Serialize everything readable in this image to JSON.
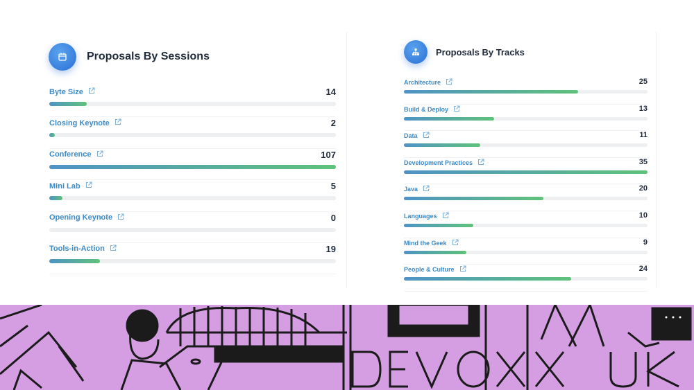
{
  "sessions": {
    "title": "Proposals By Sessions",
    "icon": "calendar-icon",
    "max": 107,
    "items": [
      {
        "label": "Byte Size",
        "count": "14",
        "value": 14
      },
      {
        "label": "Closing Keynote",
        "count": "2",
        "value": 2
      },
      {
        "label": "Conference",
        "count": "107",
        "value": 107
      },
      {
        "label": "Mini Lab",
        "count": "5",
        "value": 5
      },
      {
        "label": "Opening Keynote",
        "count": "0",
        "value": 0
      },
      {
        "label": "Tools-in-Action",
        "count": "19",
        "value": 19
      }
    ]
  },
  "tracks": {
    "title": "Proposals By Tracks",
    "icon": "sitemap-icon",
    "max": 35,
    "items": [
      {
        "label": "Architecture",
        "count": "25",
        "value": 25
      },
      {
        "label": "Build & Deploy",
        "count": "13",
        "value": 13
      },
      {
        "label": "Data",
        "count": "11",
        "value": 11
      },
      {
        "label": "Development Practices",
        "count": "35",
        "value": 35
      },
      {
        "label": "Java",
        "count": "20",
        "value": 20
      },
      {
        "label": "Languages",
        "count": "10",
        "value": 10
      },
      {
        "label": "Mind the Geek",
        "count": "9",
        "value": 9
      },
      {
        "label": "People & Culture",
        "count": "24",
        "value": 24
      }
    ]
  },
  "banner": {
    "logo_text": "DEVOXX UK",
    "background": "#d59ee3"
  },
  "colors": {
    "accent": "#2a6fd6",
    "label": "#3d8ac8",
    "bar_start": "#4f93c6",
    "bar_end": "#5fc27a",
    "track": "#eeeff1"
  }
}
